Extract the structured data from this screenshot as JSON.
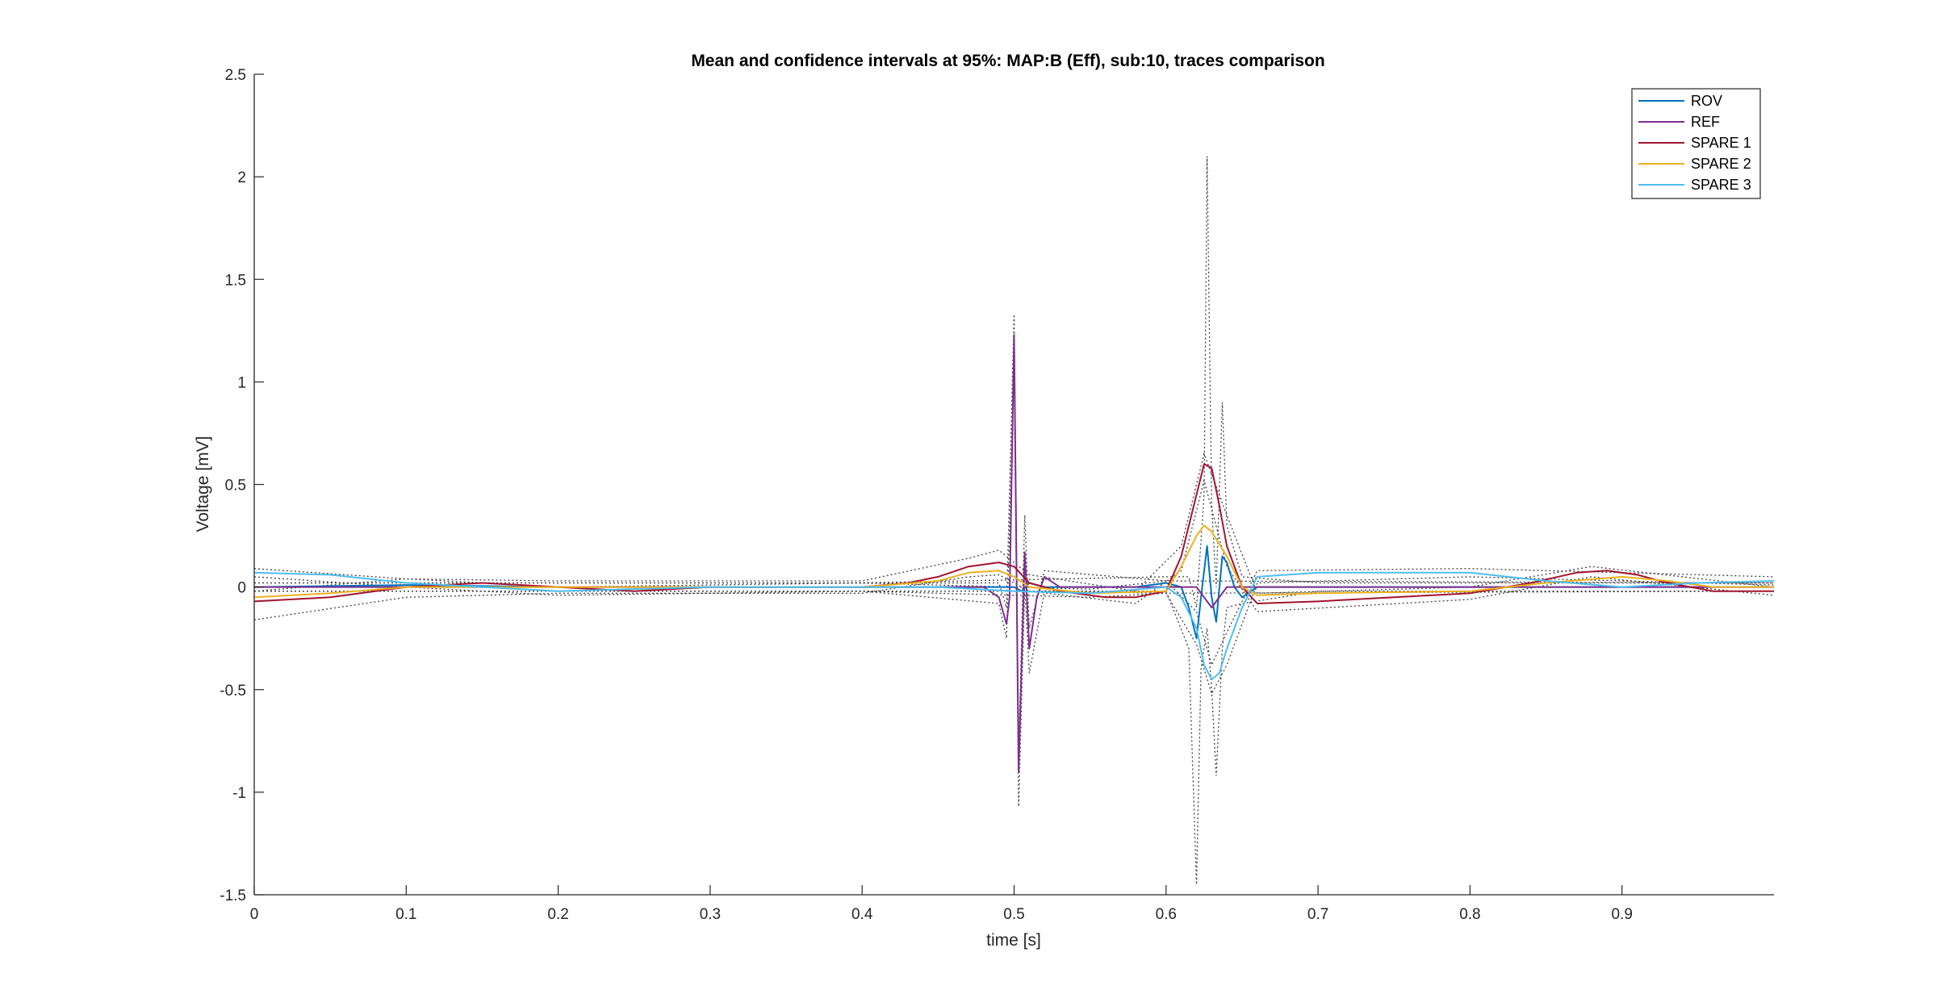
{
  "chart_data": {
    "type": "line",
    "title": "Mean and confidence intervals at 95%: MAP:B (Eff), sub:10, traces comparison",
    "xlabel": "time [s]",
    "ylabel": "Voltage [mV]",
    "xlim": [
      0,
      1
    ],
    "ylim": [
      -1.5,
      2.5
    ],
    "xticks": [
      0,
      0.1,
      0.2,
      0.3,
      0.4,
      0.5,
      0.6,
      0.7,
      0.8,
      0.9
    ],
    "xtick_labels": [
      "0",
      "0.1",
      "0.2",
      "0.3",
      "0.4",
      "0.5",
      "0.6",
      "0.7",
      "0.8",
      "0.9"
    ],
    "yticks": [
      -1.5,
      -1,
      -0.5,
      0,
      0.5,
      1,
      1.5,
      2,
      2.5
    ],
    "ytick_labels": [
      "-1.5",
      "-1",
      "-0.5",
      "0",
      "0.5",
      "1",
      "1.5",
      "2",
      "2.5"
    ],
    "grid": false,
    "legend_position": "top-right",
    "ci_color": "#404040",
    "series": [
      {
        "name": "ROV",
        "color": "#0072BD",
        "points": [
          [
            0,
            0.0
          ],
          [
            0.1,
            0.01
          ],
          [
            0.2,
            0.0
          ],
          [
            0.3,
            0.0
          ],
          [
            0.4,
            0.0
          ],
          [
            0.45,
            0.0
          ],
          [
            0.48,
            0.0
          ],
          [
            0.495,
            0.0
          ],
          [
            0.5,
            0.0
          ],
          [
            0.505,
            -0.02
          ],
          [
            0.51,
            0.02
          ],
          [
            0.52,
            0.0
          ],
          [
            0.55,
            0.0
          ],
          [
            0.58,
            0.0
          ],
          [
            0.6,
            0.02
          ],
          [
            0.61,
            0.0
          ],
          [
            0.615,
            -0.1
          ],
          [
            0.62,
            -0.25
          ],
          [
            0.623,
            -0.05
          ],
          [
            0.627,
            0.2
          ],
          [
            0.63,
            -0.05
          ],
          [
            0.633,
            -0.17
          ],
          [
            0.637,
            0.15
          ],
          [
            0.64,
            0.12
          ],
          [
            0.645,
            0.0
          ],
          [
            0.65,
            -0.05
          ],
          [
            0.66,
            0.0
          ],
          [
            0.7,
            0.0
          ],
          [
            0.8,
            0.0
          ],
          [
            0.9,
            0.0
          ],
          [
            1.0,
            0.0
          ]
        ]
      },
      {
        "name": "REF",
        "color": "#7E2F8E",
        "points": [
          [
            0,
            0.0
          ],
          [
            0.1,
            0.0
          ],
          [
            0.2,
            0.0
          ],
          [
            0.3,
            0.0
          ],
          [
            0.4,
            0.0
          ],
          [
            0.48,
            0.0
          ],
          [
            0.49,
            -0.05
          ],
          [
            0.495,
            -0.18
          ],
          [
            0.497,
            -0.05
          ],
          [
            0.5,
            1.23
          ],
          [
            0.503,
            -0.9
          ],
          [
            0.507,
            0.17
          ],
          [
            0.51,
            -0.3
          ],
          [
            0.515,
            -0.05
          ],
          [
            0.52,
            0.05
          ],
          [
            0.53,
            0.0
          ],
          [
            0.56,
            0.0
          ],
          [
            0.6,
            0.0
          ],
          [
            0.62,
            0.0
          ],
          [
            0.625,
            -0.05
          ],
          [
            0.63,
            -0.1
          ],
          [
            0.64,
            0.0
          ],
          [
            0.66,
            0.0
          ],
          [
            0.7,
            0.0
          ],
          [
            0.8,
            0.0
          ],
          [
            0.9,
            0.0
          ],
          [
            1.0,
            0.0
          ]
        ]
      },
      {
        "name": "SPARE 1",
        "color": "#A2142F",
        "points": [
          [
            0,
            -0.07
          ],
          [
            0.05,
            -0.05
          ],
          [
            0.1,
            0.0
          ],
          [
            0.15,
            0.02
          ],
          [
            0.2,
            0.0
          ],
          [
            0.25,
            -0.02
          ],
          [
            0.3,
            0.0
          ],
          [
            0.35,
            0.0
          ],
          [
            0.4,
            0.0
          ],
          [
            0.43,
            0.02
          ],
          [
            0.45,
            0.05
          ],
          [
            0.47,
            0.1
          ],
          [
            0.49,
            0.12
          ],
          [
            0.5,
            0.1
          ],
          [
            0.51,
            0.02
          ],
          [
            0.53,
            -0.02
          ],
          [
            0.56,
            -0.05
          ],
          [
            0.58,
            -0.05
          ],
          [
            0.6,
            -0.02
          ],
          [
            0.61,
            0.15
          ],
          [
            0.62,
            0.45
          ],
          [
            0.625,
            0.6
          ],
          [
            0.63,
            0.58
          ],
          [
            0.635,
            0.4
          ],
          [
            0.64,
            0.2
          ],
          [
            0.65,
            0.0
          ],
          [
            0.66,
            -0.08
          ],
          [
            0.7,
            -0.07
          ],
          [
            0.75,
            -0.05
          ],
          [
            0.8,
            -0.03
          ],
          [
            0.84,
            0.02
          ],
          [
            0.87,
            0.07
          ],
          [
            0.89,
            0.08
          ],
          [
            0.91,
            0.06
          ],
          [
            0.93,
            0.02
          ],
          [
            0.96,
            -0.02
          ],
          [
            1.0,
            -0.02
          ]
        ]
      },
      {
        "name": "SPARE 2",
        "color": "#EDB120",
        "points": [
          [
            0,
            -0.05
          ],
          [
            0.05,
            -0.03
          ],
          [
            0.1,
            0.0
          ],
          [
            0.2,
            0.0
          ],
          [
            0.3,
            0.0
          ],
          [
            0.4,
            0.0
          ],
          [
            0.45,
            0.03
          ],
          [
            0.47,
            0.07
          ],
          [
            0.49,
            0.08
          ],
          [
            0.5,
            0.05
          ],
          [
            0.51,
            0.0
          ],
          [
            0.55,
            -0.03
          ],
          [
            0.6,
            -0.02
          ],
          [
            0.61,
            0.1
          ],
          [
            0.62,
            0.25
          ],
          [
            0.625,
            0.3
          ],
          [
            0.63,
            0.27
          ],
          [
            0.64,
            0.15
          ],
          [
            0.65,
            0.0
          ],
          [
            0.66,
            -0.04
          ],
          [
            0.7,
            -0.03
          ],
          [
            0.8,
            -0.02
          ],
          [
            0.85,
            0.02
          ],
          [
            0.9,
            0.05
          ],
          [
            0.93,
            0.03
          ],
          [
            0.96,
            0.0
          ],
          [
            1.0,
            0.0
          ]
        ]
      },
      {
        "name": "SPARE 3",
        "color": "#4DBEEE",
        "points": [
          [
            0,
            0.07
          ],
          [
            0.05,
            0.06
          ],
          [
            0.1,
            0.02
          ],
          [
            0.2,
            -0.02
          ],
          [
            0.3,
            0.0
          ],
          [
            0.4,
            0.0
          ],
          [
            0.45,
            0.0
          ],
          [
            0.5,
            -0.02
          ],
          [
            0.55,
            -0.03
          ],
          [
            0.6,
            0.0
          ],
          [
            0.61,
            -0.05
          ],
          [
            0.62,
            -0.2
          ],
          [
            0.625,
            -0.38
          ],
          [
            0.63,
            -0.45
          ],
          [
            0.635,
            -0.42
          ],
          [
            0.64,
            -0.3
          ],
          [
            0.65,
            -0.1
          ],
          [
            0.66,
            0.05
          ],
          [
            0.7,
            0.07
          ],
          [
            0.8,
            0.07
          ],
          [
            0.85,
            0.03
          ],
          [
            0.9,
            0.0
          ],
          [
            0.95,
            0.02
          ],
          [
            1.0,
            0.03
          ]
        ]
      }
    ],
    "ci_bounds": [
      {
        "name": "ROV CI upper",
        "points": [
          [
            0,
            0.02
          ],
          [
            0.2,
            0.02
          ],
          [
            0.4,
            0.02
          ],
          [
            0.6,
            0.05
          ],
          [
            0.615,
            0.05
          ],
          [
            0.62,
            -0.1
          ],
          [
            0.625,
            0.45
          ],
          [
            0.627,
            2.1
          ],
          [
            0.63,
            0.4
          ],
          [
            0.633,
            0.0
          ],
          [
            0.637,
            0.9
          ],
          [
            0.64,
            0.3
          ],
          [
            0.65,
            0.05
          ],
          [
            0.7,
            0.02
          ],
          [
            1.0,
            0.02
          ]
        ]
      },
      {
        "name": "ROV CI lower",
        "points": [
          [
            0,
            -0.02
          ],
          [
            0.2,
            -0.02
          ],
          [
            0.4,
            -0.02
          ],
          [
            0.6,
            -0.02
          ],
          [
            0.615,
            -0.3
          ],
          [
            0.62,
            -1.45
          ],
          [
            0.623,
            -0.4
          ],
          [
            0.627,
            -0.2
          ],
          [
            0.63,
            -0.5
          ],
          [
            0.633,
            -0.92
          ],
          [
            0.637,
            -0.3
          ],
          [
            0.64,
            -0.1
          ],
          [
            0.65,
            -0.08
          ],
          [
            0.7,
            -0.02
          ],
          [
            1.0,
            -0.02
          ]
        ]
      },
      {
        "name": "REF CI upper",
        "points": [
          [
            0,
            0.02
          ],
          [
            0.4,
            0.02
          ],
          [
            0.49,
            0.02
          ],
          [
            0.495,
            -0.1
          ],
          [
            0.5,
            1.33
          ],
          [
            0.503,
            -0.8
          ],
          [
            0.507,
            0.35
          ],
          [
            0.51,
            -0.2
          ],
          [
            0.52,
            0.08
          ],
          [
            0.6,
            0.03
          ],
          [
            1.0,
            0.02
          ]
        ]
      },
      {
        "name": "REF CI lower",
        "points": [
          [
            0,
            -0.02
          ],
          [
            0.4,
            -0.02
          ],
          [
            0.49,
            -0.08
          ],
          [
            0.495,
            -0.25
          ],
          [
            0.5,
            1.1
          ],
          [
            0.503,
            -1.07
          ],
          [
            0.507,
            0.0
          ],
          [
            0.51,
            -0.42
          ],
          [
            0.52,
            -0.02
          ],
          [
            0.6,
            -0.03
          ],
          [
            1.0,
            -0.02
          ]
        ]
      },
      {
        "name": "SPARE 1 CI upper",
        "points": [
          [
            0,
            -0.02
          ],
          [
            0.1,
            0.04
          ],
          [
            0.2,
            0.03
          ],
          [
            0.4,
            0.03
          ],
          [
            0.47,
            0.14
          ],
          [
            0.49,
            0.18
          ],
          [
            0.51,
            0.06
          ],
          [
            0.58,
            -0.02
          ],
          [
            0.61,
            0.2
          ],
          [
            0.625,
            0.65
          ],
          [
            0.64,
            0.35
          ],
          [
            0.66,
            -0.03
          ],
          [
            0.8,
            0.0
          ],
          [
            0.88,
            0.1
          ],
          [
            1.0,
            0.0
          ]
        ]
      },
      {
        "name": "SPARE 1 CI lower",
        "points": [
          [
            0,
            -0.16
          ],
          [
            0.1,
            -0.05
          ],
          [
            0.2,
            -0.03
          ],
          [
            0.4,
            -0.03
          ],
          [
            0.47,
            0.05
          ],
          [
            0.49,
            0.06
          ],
          [
            0.51,
            -0.02
          ],
          [
            0.58,
            -0.08
          ],
          [
            0.61,
            0.08
          ],
          [
            0.625,
            0.52
          ],
          [
            0.64,
            0.1
          ],
          [
            0.66,
            -0.12
          ],
          [
            0.8,
            -0.06
          ],
          [
            0.88,
            0.05
          ],
          [
            1.0,
            -0.04
          ]
        ]
      },
      {
        "name": "SPARE 3 CI upper",
        "points": [
          [
            0,
            0.09
          ],
          [
            0.1,
            0.04
          ],
          [
            0.2,
            0.0
          ],
          [
            0.4,
            0.02
          ],
          [
            0.55,
            -0.01
          ],
          [
            0.6,
            0.03
          ],
          [
            0.62,
            -0.12
          ],
          [
            0.63,
            -0.38
          ],
          [
            0.64,
            -0.22
          ],
          [
            0.66,
            0.08
          ],
          [
            0.8,
            0.09
          ],
          [
            1.0,
            0.05
          ]
        ]
      },
      {
        "name": "SPARE 3 CI lower",
        "points": [
          [
            0,
            0.05
          ],
          [
            0.1,
            0.0
          ],
          [
            0.2,
            -0.04
          ],
          [
            0.4,
            -0.02
          ],
          [
            0.55,
            -0.05
          ],
          [
            0.6,
            -0.03
          ],
          [
            0.62,
            -0.28
          ],
          [
            0.63,
            -0.52
          ],
          [
            0.64,
            -0.38
          ],
          [
            0.66,
            0.02
          ],
          [
            0.8,
            0.05
          ],
          [
            1.0,
            0.01
          ]
        ]
      }
    ]
  }
}
